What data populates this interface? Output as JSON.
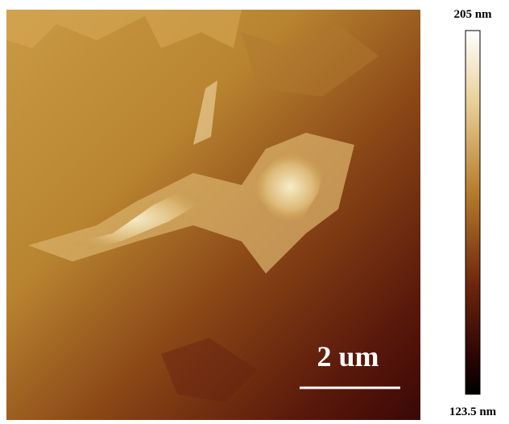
{
  "image": {
    "scale_bar": {
      "label": "2 um"
    }
  },
  "colorbar": {
    "max_label": "205 nm",
    "min_label": "123.5 nm"
  }
}
